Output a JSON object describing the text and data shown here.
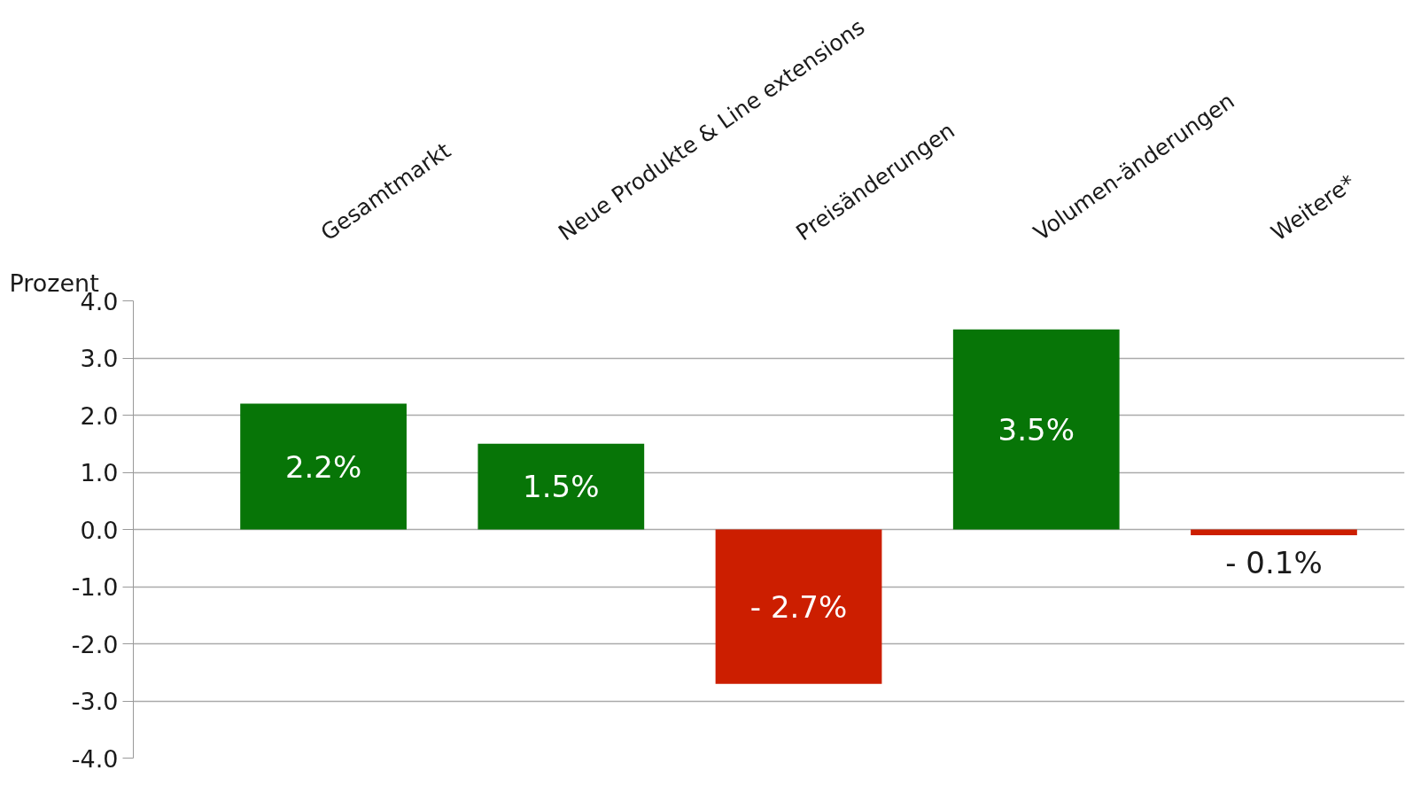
{
  "chart_data": {
    "type": "bar",
    "ylabel": "Prozent",
    "categories": [
      "Gesamtmarkt",
      "Neue Produkte & Line extensions",
      "Preisänderungen",
      "Volumen-änderungen",
      "Weitere*"
    ],
    "values": [
      2.2,
      1.5,
      -2.7,
      3.5,
      -0.1
    ],
    "colors": [
      "#077507",
      "#077507",
      "#cc1e00",
      "#077507",
      "#cc1e00"
    ],
    "value_labels": [
      "2.2%",
      "1.5%",
      "- 2.7%",
      "3.5%",
      "- 0.1%"
    ],
    "ylim": [
      -4,
      4
    ],
    "yticks": [
      {
        "value": 4,
        "label": "4.0"
      },
      {
        "value": 3,
        "label": "3.0"
      },
      {
        "value": 2,
        "label": "2.0"
      },
      {
        "value": 1,
        "label": "1.0"
      },
      {
        "value": 0,
        "label": "0.0"
      },
      {
        "value": -1,
        "label": "-1.0"
      },
      {
        "value": -2,
        "label": "-2.0"
      },
      {
        "value": -3,
        "label": "-3.0"
      },
      {
        "value": -4,
        "label": "-4.0"
      }
    ],
    "grid": "y"
  }
}
